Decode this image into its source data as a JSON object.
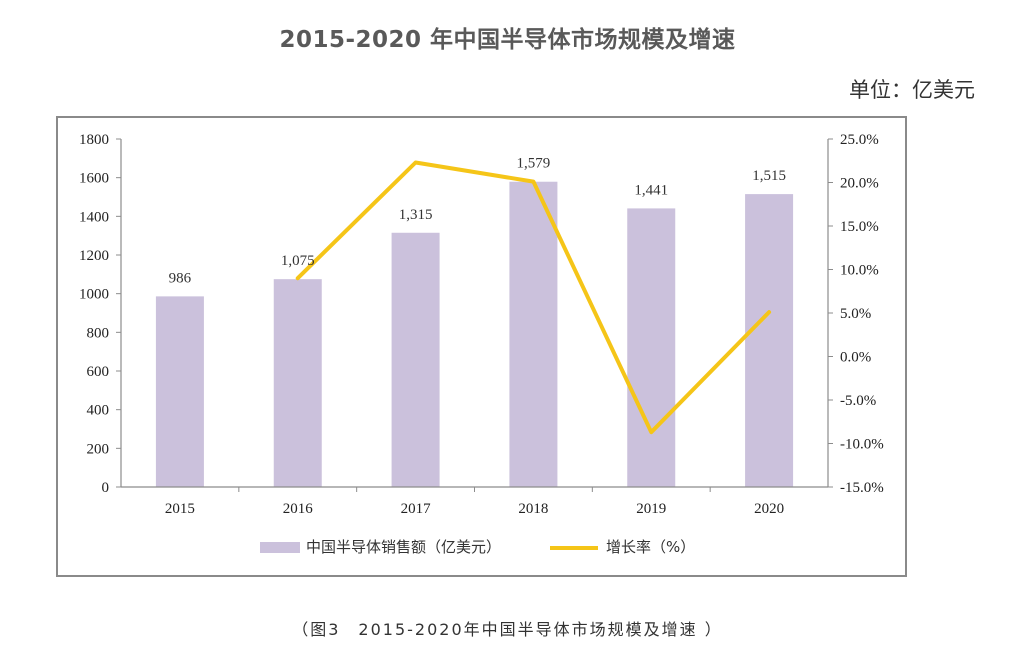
{
  "page": {
    "title": "2015-2020 年中国半导体市场规模及增速",
    "unit": "单位：亿美元",
    "caption": "（图3　2015-2020年中国半导体市场规模及增速 ）"
  },
  "chart_data": {
    "type": "bar",
    "title": "2015-2020 年中国半导体市场规模及增速",
    "categories": [
      "2015",
      "2016",
      "2017",
      "2018",
      "2019",
      "2020"
    ],
    "series": [
      {
        "name": "中国半导体销售额（亿美元）",
        "type": "bar",
        "axis": "left",
        "color": "#cbc1dc",
        "values": [
          986,
          1075,
          1315,
          1579,
          1441,
          1515
        ],
        "labels": [
          "986",
          "1,075",
          "1,315",
          "1,579",
          "1,441",
          "1,515"
        ]
      },
      {
        "name": "增长率（%）",
        "type": "line",
        "axis": "right",
        "color": "#f5c518",
        "x": [
          "2016",
          "2017",
          "2018",
          "2019",
          "2020"
        ],
        "values": [
          9.0,
          22.3,
          20.1,
          -8.7,
          5.1
        ]
      }
    ],
    "left_axis": {
      "ylim": [
        0,
        1800
      ],
      "ticks": [
        0,
        200,
        400,
        600,
        800,
        1000,
        1200,
        1400,
        1600,
        1800
      ],
      "tick_labels": [
        "0",
        "200",
        "400",
        "600",
        "800",
        "1000",
        "1200",
        "1400",
        "1600",
        "1800"
      ]
    },
    "right_axis": {
      "ylim": [
        -15,
        25
      ],
      "ticks": [
        -15,
        -10,
        -5,
        0,
        5,
        10,
        15,
        20,
        25
      ],
      "tick_labels": [
        "-15.0%",
        "-10.0%",
        "-5.0%",
        "0.0%",
        "5.0%",
        "10.0%",
        "15.0%",
        "20.0%",
        "25.0%"
      ]
    },
    "legend": {
      "position": "bottom",
      "items": [
        {
          "label": "中国半导体销售额（亿美元）",
          "swatch": "bar",
          "color": "#cbc1dc"
        },
        {
          "label": "增长率（%）",
          "swatch": "line",
          "color": "#f5c518"
        }
      ]
    },
    "grid": false
  }
}
